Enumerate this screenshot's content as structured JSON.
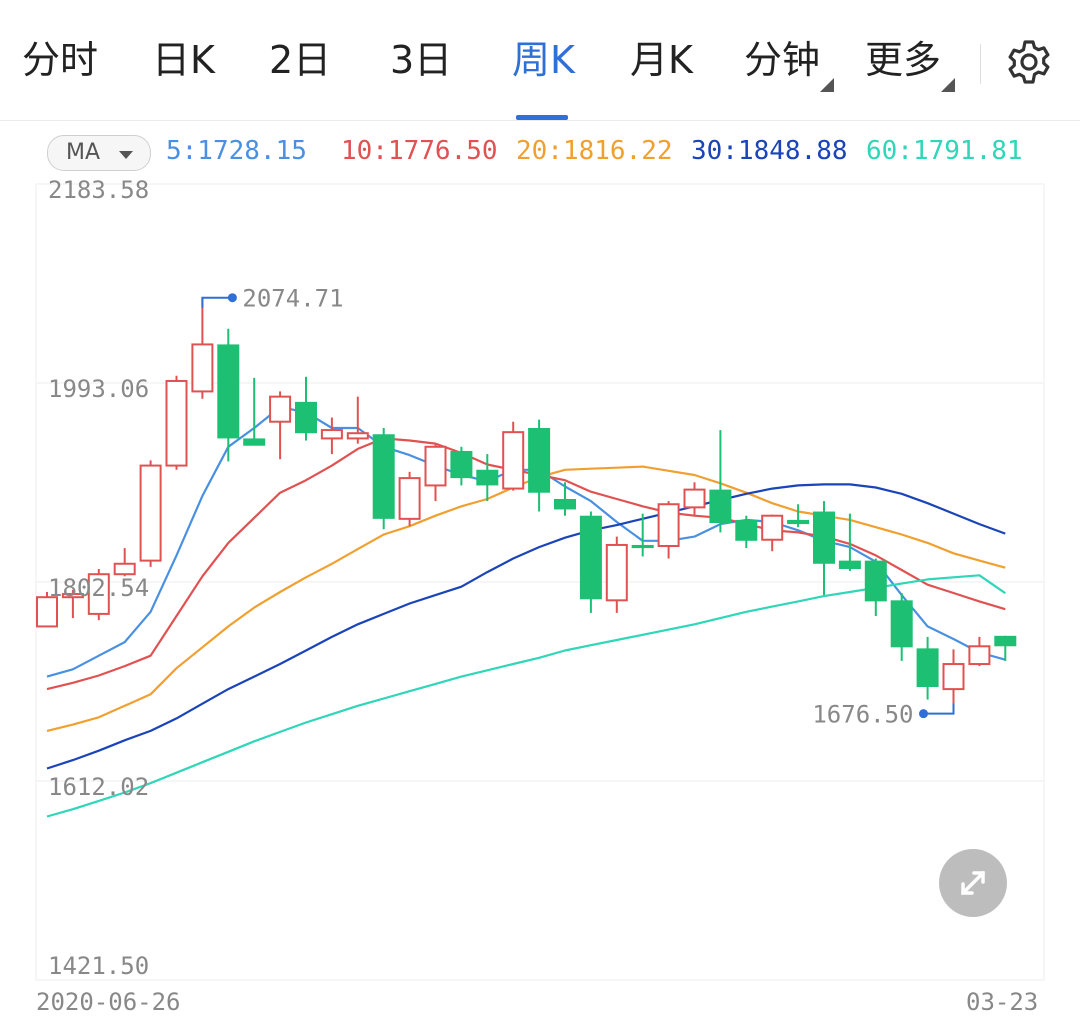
{
  "tabs": [
    {
      "label": "分时"
    },
    {
      "label": "日K"
    },
    {
      "label": "2日"
    },
    {
      "label": "3日"
    },
    {
      "label": "周K"
    },
    {
      "label": "月K"
    },
    {
      "label": "分钟"
    },
    {
      "label": "更多"
    }
  ],
  "active_tab": "周K",
  "icons": {
    "settings": "gear-icon",
    "expand": "expand-icon"
  },
  "ma_button": {
    "label": "MA"
  },
  "ma_values": [
    {
      "label": "5:1728.15",
      "period": 5,
      "value": 1728.15,
      "color": "#4a90e2"
    },
    {
      "label": "10:1776.50",
      "period": 10,
      "value": 1776.5,
      "color": "#e05252"
    },
    {
      "label": "20:1816.22",
      "period": 20,
      "value": 1816.22,
      "color": "#f0a030"
    },
    {
      "label": "30:1848.88",
      "period": 30,
      "value": 1848.88,
      "color": "#1a44b8"
    },
    {
      "label": "60:1791.81",
      "period": 60,
      "value": 1791.81,
      "color": "#2fd6b8"
    }
  ],
  "colors": {
    "up": "#e05252",
    "down": "#1dbf73",
    "accent": "#2f6fd6"
  },
  "chart_data": {
    "type": "candlestick",
    "y_ticks": [
      "2183.58",
      "1993.06",
      "1802.54",
      "1612.02",
      "1421.50"
    ],
    "ylim": [
      1421.5,
      2183.58
    ],
    "x_start_label": "2020-06-26",
    "x_end_label": "03-23",
    "max_label": "2074.71",
    "min_label": "1676.50",
    "max_value": 2074.71,
    "min_value": 1676.5,
    "candles": [
      {
        "o": 1760,
        "c": 1788,
        "h": 1793,
        "l": 1760
      },
      {
        "o": 1788,
        "c": 1791,
        "h": 1795,
        "l": 1768
      },
      {
        "o": 1772,
        "c": 1810,
        "h": 1815,
        "l": 1766
      },
      {
        "o": 1810,
        "c": 1820,
        "h": 1835,
        "l": 1808
      },
      {
        "o": 1823,
        "c": 1914,
        "h": 1919,
        "l": 1817
      },
      {
        "o": 1914,
        "c": 1995,
        "h": 2000,
        "l": 1910
      },
      {
        "o": 1985,
        "c": 2030,
        "h": 2074.71,
        "l": 1978
      },
      {
        "o": 2030,
        "c": 1940,
        "h": 2045,
        "l": 1918
      },
      {
        "o": 1940,
        "c": 1933,
        "h": 1998,
        "l": 1935
      },
      {
        "o": 1956,
        "c": 1980,
        "h": 1985,
        "l": 1920
      },
      {
        "o": 1975,
        "c": 1945,
        "h": 1999,
        "l": 1938
      },
      {
        "o": 1940,
        "c": 1948,
        "h": 1960,
        "l": 1925
      },
      {
        "o": 1940,
        "c": 1945,
        "h": 1980,
        "l": 1935
      },
      {
        "o": 1944,
        "c": 1863,
        "h": 1950,
        "l": 1853
      },
      {
        "o": 1863,
        "c": 1902,
        "h": 1908,
        "l": 1856
      },
      {
        "o": 1895,
        "c": 1932,
        "h": 1934,
        "l": 1880
      },
      {
        "o": 1928,
        "c": 1902,
        "h": 1932,
        "l": 1895
      },
      {
        "o": 1910,
        "c": 1895,
        "h": 1925,
        "l": 1880
      },
      {
        "o": 1892,
        "c": 1946,
        "h": 1956,
        "l": 1890
      },
      {
        "o": 1950,
        "c": 1888,
        "h": 1958,
        "l": 1870
      },
      {
        "o": 1882,
        "c": 1872,
        "h": 1898,
        "l": 1866
      },
      {
        "o": 1866,
        "c": 1786,
        "h": 1870,
        "l": 1773
      },
      {
        "o": 1785,
        "c": 1838,
        "h": 1846,
        "l": 1773
      },
      {
        "o": 1838,
        "c": 1835,
        "h": 1868,
        "l": 1827
      },
      {
        "o": 1837,
        "c": 1877,
        "h": 1880,
        "l": 1825
      },
      {
        "o": 1874,
        "c": 1891,
        "h": 1898,
        "l": 1866
      },
      {
        "o": 1891,
        "c": 1859,
        "h": 1948,
        "l": 1850
      },
      {
        "o": 1862,
        "c": 1842,
        "h": 1866,
        "l": 1835
      },
      {
        "o": 1843,
        "c": 1866,
        "h": 1867,
        "l": 1832
      },
      {
        "o": 1862,
        "c": 1858,
        "h": 1877,
        "l": 1855
      },
      {
        "o": 1870,
        "c": 1820,
        "h": 1880,
        "l": 1790
      },
      {
        "o": 1823,
        "c": 1815,
        "h": 1868,
        "l": 1813
      },
      {
        "o": 1823,
        "c": 1784,
        "h": 1825,
        "l": 1770
      },
      {
        "o": 1785,
        "c": 1740,
        "h": 1792,
        "l": 1727
      },
      {
        "o": 1739,
        "c": 1702,
        "h": 1750,
        "l": 1690
      },
      {
        "o": 1700,
        "c": 1724,
        "h": 1738,
        "l": 1676.5
      },
      {
        "o": 1724,
        "c": 1741,
        "h": 1750,
        "l": 1722
      },
      {
        "o": 1751,
        "c": 1741,
        "h": 1751,
        "l": 1727
      }
    ],
    "series": [
      {
        "name": "MA5",
        "color": "#4a90e2",
        "values": [
          [
            0,
            1712
          ],
          [
            1,
            1719
          ],
          [
            2,
            1732
          ],
          [
            3,
            1745
          ],
          [
            4,
            1774
          ],
          [
            5,
            1828
          ],
          [
            6,
            1885
          ],
          [
            7,
            1932
          ],
          [
            8,
            1950
          ],
          [
            9,
            1970
          ],
          [
            10,
            1965
          ],
          [
            11,
            1950
          ],
          [
            12,
            1950
          ],
          [
            13,
            1932
          ],
          [
            14,
            1924
          ],
          [
            15,
            1914
          ],
          [
            16,
            1905
          ],
          [
            17,
            1899
          ],
          [
            18,
            1910
          ],
          [
            19,
            1910
          ],
          [
            20,
            1894
          ],
          [
            21,
            1880
          ],
          [
            22,
            1860
          ],
          [
            23,
            1842
          ],
          [
            24,
            1842
          ],
          [
            25,
            1846
          ],
          [
            26,
            1858
          ],
          [
            27,
            1862
          ],
          [
            28,
            1860
          ],
          [
            29,
            1852
          ],
          [
            30,
            1842
          ],
          [
            31,
            1836
          ],
          [
            32,
            1822
          ],
          [
            33,
            1790
          ],
          [
            34,
            1760
          ],
          [
            35,
            1748
          ],
          [
            36,
            1735
          ],
          [
            37,
            1728.15
          ]
        ]
      },
      {
        "name": "MA10",
        "color": "#e05252",
        "values": [
          [
            0,
            1700
          ],
          [
            1,
            1706
          ],
          [
            2,
            1713
          ],
          [
            3,
            1722
          ],
          [
            4,
            1732
          ],
          [
            5,
            1770
          ],
          [
            6,
            1808
          ],
          [
            7,
            1840
          ],
          [
            8,
            1864
          ],
          [
            9,
            1888
          ],
          [
            10,
            1900
          ],
          [
            11,
            1914
          ],
          [
            12,
            1930
          ],
          [
            13,
            1940
          ],
          [
            14,
            1938
          ],
          [
            15,
            1935
          ],
          [
            16,
            1926
          ],
          [
            17,
            1915
          ],
          [
            18,
            1910
          ],
          [
            19,
            1905
          ],
          [
            20,
            1900
          ],
          [
            21,
            1889
          ],
          [
            22,
            1882
          ],
          [
            23,
            1875
          ],
          [
            24,
            1869
          ],
          [
            25,
            1866
          ],
          [
            26,
            1864
          ],
          [
            27,
            1858
          ],
          [
            28,
            1852
          ],
          [
            29,
            1850
          ],
          [
            30,
            1846
          ],
          [
            31,
            1839
          ],
          [
            32,
            1828
          ],
          [
            33,
            1814
          ],
          [
            34,
            1800
          ],
          [
            35,
            1792
          ],
          [
            36,
            1784
          ],
          [
            37,
            1776.5
          ]
        ]
      },
      {
        "name": "MA20",
        "color": "#f0a030",
        "values": [
          [
            0,
            1660
          ],
          [
            1,
            1666
          ],
          [
            2,
            1673
          ],
          [
            3,
            1684
          ],
          [
            4,
            1695
          ],
          [
            5,
            1720
          ],
          [
            6,
            1740
          ],
          [
            7,
            1760
          ],
          [
            8,
            1778
          ],
          [
            9,
            1793
          ],
          [
            10,
            1807
          ],
          [
            11,
            1820
          ],
          [
            12,
            1834
          ],
          [
            13,
            1848
          ],
          [
            14,
            1856
          ],
          [
            15,
            1866
          ],
          [
            16,
            1875
          ],
          [
            17,
            1882
          ],
          [
            18,
            1893
          ],
          [
            19,
            1903
          ],
          [
            20,
            1910
          ],
          [
            21,
            1911
          ],
          [
            22,
            1912
          ],
          [
            23,
            1913
          ],
          [
            24,
            1909
          ],
          [
            25,
            1905
          ],
          [
            26,
            1897
          ],
          [
            27,
            1888
          ],
          [
            28,
            1878
          ],
          [
            29,
            1870
          ],
          [
            30,
            1866
          ],
          [
            31,
            1862
          ],
          [
            32,
            1855
          ],
          [
            33,
            1848
          ],
          [
            34,
            1840
          ],
          [
            35,
            1830
          ],
          [
            36,
            1823
          ],
          [
            37,
            1816.22
          ]
        ]
      },
      {
        "name": "MA30",
        "color": "#1a44b8",
        "values": [
          [
            0,
            1624
          ],
          [
            1,
            1632
          ],
          [
            2,
            1641
          ],
          [
            3,
            1651
          ],
          [
            4,
            1660
          ],
          [
            5,
            1672
          ],
          [
            6,
            1686
          ],
          [
            7,
            1700
          ],
          [
            8,
            1712
          ],
          [
            9,
            1724
          ],
          [
            10,
            1737
          ],
          [
            11,
            1750
          ],
          [
            12,
            1762
          ],
          [
            13,
            1772
          ],
          [
            14,
            1782
          ],
          [
            15,
            1790
          ],
          [
            16,
            1798
          ],
          [
            17,
            1812
          ],
          [
            18,
            1825
          ],
          [
            19,
            1836
          ],
          [
            20,
            1845
          ],
          [
            21,
            1852
          ],
          [
            22,
            1857
          ],
          [
            23,
            1863
          ],
          [
            24,
            1869
          ],
          [
            25,
            1875
          ],
          [
            26,
            1881
          ],
          [
            27,
            1887
          ],
          [
            28,
            1892
          ],
          [
            29,
            1895
          ],
          [
            30,
            1896
          ],
          [
            31,
            1896
          ],
          [
            32,
            1893
          ],
          [
            33,
            1887
          ],
          [
            34,
            1878
          ],
          [
            35,
            1868
          ],
          [
            36,
            1858
          ],
          [
            37,
            1848.88
          ]
        ]
      },
      {
        "name": "MA60",
        "color": "#2fd6b8",
        "values": [
          [
            0,
            1578
          ],
          [
            1,
            1585
          ],
          [
            2,
            1593
          ],
          [
            3,
            1601
          ],
          [
            4,
            1610
          ],
          [
            5,
            1620
          ],
          [
            6,
            1630
          ],
          [
            7,
            1640
          ],
          [
            8,
            1650
          ],
          [
            9,
            1659
          ],
          [
            10,
            1668
          ],
          [
            11,
            1676
          ],
          [
            12,
            1684
          ],
          [
            13,
            1691
          ],
          [
            14,
            1698
          ],
          [
            15,
            1705
          ],
          [
            16,
            1712
          ],
          [
            17,
            1718
          ],
          [
            18,
            1724
          ],
          [
            19,
            1730
          ],
          [
            20,
            1737
          ],
          [
            21,
            1742
          ],
          [
            22,
            1747
          ],
          [
            23,
            1752
          ],
          [
            24,
            1757
          ],
          [
            25,
            1762
          ],
          [
            26,
            1768
          ],
          [
            27,
            1774
          ],
          [
            28,
            1779
          ],
          [
            29,
            1784
          ],
          [
            30,
            1789
          ],
          [
            31,
            1793
          ],
          [
            32,
            1797
          ],
          [
            33,
            1801
          ],
          [
            34,
            1805
          ],
          [
            35,
            1807
          ],
          [
            36,
            1809
          ],
          [
            37,
            1791.81
          ]
        ]
      }
    ]
  }
}
